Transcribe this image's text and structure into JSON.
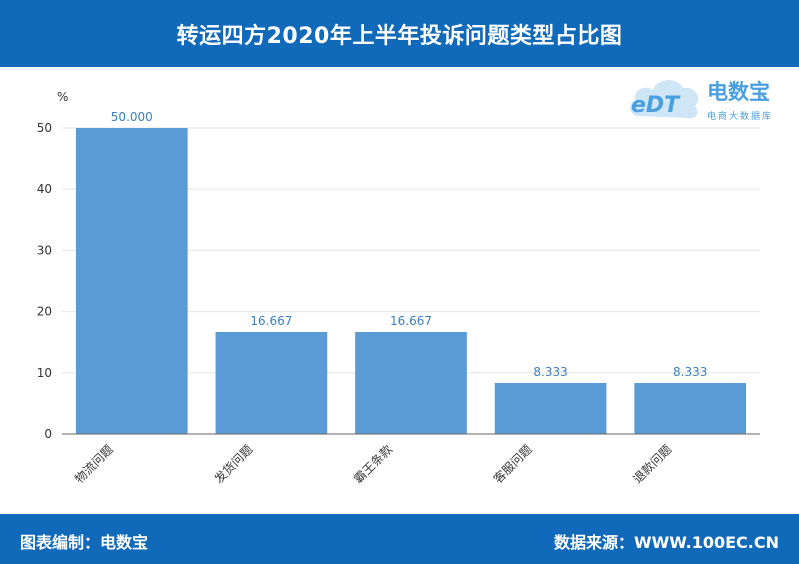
{
  "header": {
    "title": "转运四方2020年上半年投诉问题类型占比图"
  },
  "logo": {
    "text": "eDT",
    "brand": "电数宝",
    "sub": "电商大数据库"
  },
  "footer": {
    "left": "图表编制：电数宝",
    "right": "数据来源：WWW.100EC.CN"
  },
  "colors": {
    "bar": "#5b9bd5",
    "header": "#1069b9",
    "label": "#3a7fc4"
  },
  "chart_data": {
    "type": "bar",
    "title": "转运四方2020年上半年投诉问题类型占比图",
    "ylabel": "%",
    "xlabel": "",
    "categories": [
      "物流问题",
      "发货问题",
      "霸王条款",
      "客服问题",
      "退款问题"
    ],
    "values": [
      50.0,
      16.667,
      16.667,
      8.333,
      8.333
    ],
    "value_labels": [
      "50.000",
      "16.667",
      "16.667",
      "8.333",
      "8.333"
    ],
    "ylim": [
      0,
      50
    ],
    "yticks": [
      "0",
      "10",
      "20",
      "30",
      "40",
      "50"
    ],
    "grid": true,
    "legend": "none"
  }
}
